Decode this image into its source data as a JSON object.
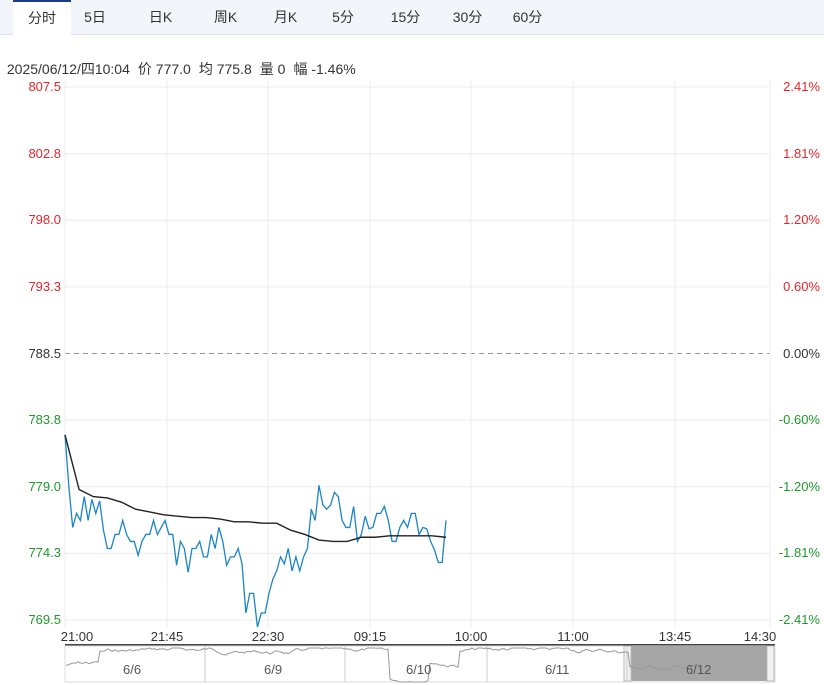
{
  "tabs": [
    {
      "label": "分时",
      "active": true
    },
    {
      "label": "5日"
    },
    {
      "label": "日K"
    },
    {
      "label": "周K"
    },
    {
      "label": "月K"
    },
    {
      "label": "5分"
    },
    {
      "label": "15分"
    },
    {
      "label": "30分"
    },
    {
      "label": "60分"
    }
  ],
  "info": {
    "datetime": "2025/06/12/四10:04",
    "price": "价 777.0",
    "avg": "均 775.8",
    "volume": "量 0",
    "change": "幅 -1.46%"
  },
  "colors": {
    "up": "#e4262b",
    "down": "#1e9a2a",
    "price_line": "#1a85c8",
    "avg_line": "#222222",
    "navigator_selected": "#a6a6a6"
  },
  "chart_data": {
    "type": "line",
    "ylim": [
      769.5,
      807.5
    ],
    "prev_close": 788.5,
    "y_ticks_left": [
      "807.5",
      "802.8",
      "798.0",
      "793.3",
      "788.5",
      "783.8",
      "779.0",
      "774.3",
      "769.5"
    ],
    "y_ticks_right": [
      "2.41%",
      "1.81%",
      "1.20%",
      "0.60%",
      "0.00%",
      "-0.60%",
      "-1.20%",
      "-1.81%",
      "-2.41%"
    ],
    "x_ticks": [
      "21:00",
      "21:45",
      "22:30",
      "09:15",
      "10:00",
      "11:00",
      "13:45",
      "14:30"
    ],
    "series": [
      {
        "key": "price",
        "values": [
          782.7,
          779.0,
          776.1,
          777.1,
          776.6,
          778.3,
          776.6,
          778.1,
          777.1,
          778.0,
          775.9,
          774.6,
          774.6,
          775.6,
          775.6,
          776.6,
          775.6,
          775.1,
          775.1,
          774.1,
          775.1,
          775.6,
          775.6,
          776.6,
          775.6,
          776.1,
          776.6,
          775.6,
          775.6,
          773.4,
          775.1,
          774.6,
          772.9,
          774.6,
          774.6,
          775.1,
          774.0,
          774.0,
          775.6,
          774.6,
          776.1,
          775.1,
          773.4,
          774.0,
          774.0,
          774.6,
          773.5,
          770.0,
          771.4,
          771.4,
          769.0,
          770.0,
          770.0,
          771.4,
          772.4,
          773.0,
          774.0,
          773.5,
          774.6,
          773.0,
          774.0,
          773.0,
          774.0,
          774.6,
          777.4,
          776.6,
          779.1,
          777.7,
          777.4,
          777.7,
          778.6,
          778.3,
          776.6,
          776.1,
          776.1,
          777.6,
          775.1,
          775.6,
          776.9,
          776.0,
          776.1,
          777.1,
          777.1,
          777.6,
          776.6,
          775.1,
          775.1,
          776.1,
          776.6,
          776.1,
          777.1,
          777.1,
          775.6,
          776.1,
          776.0,
          775.1,
          774.5,
          773.6,
          773.6,
          776.6
        ]
      },
      {
        "key": "avg",
        "values": [
          782.7,
          778.8,
          778.3,
          778.2,
          777.9,
          777.4,
          777.2,
          777.0,
          776.9,
          776.8,
          776.8,
          776.7,
          776.5,
          776.5,
          776.4,
          776.4,
          775.9,
          775.6,
          775.2,
          775.1,
          775.1,
          775.4,
          775.4,
          775.5,
          775.5,
          775.5,
          775.5,
          775.4
        ]
      }
    ]
  },
  "navigator": {
    "dates": [
      "6/6",
      "6/9",
      "6/10",
      "6/11",
      "6/12"
    ]
  }
}
